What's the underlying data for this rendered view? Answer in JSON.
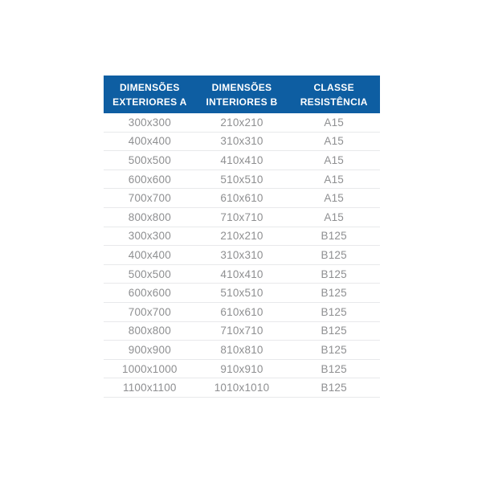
{
  "colors": {
    "header_bg": "#0e5ea2",
    "header_text": "#ffffff",
    "row_text": "#8e8f91",
    "divider": "#e8e9eb",
    "page_bg": "#ffffff"
  },
  "table": {
    "header": [
      {
        "line1": "DIMENSÕES",
        "line2": "EXTERIORES A"
      },
      {
        "line1": "DIMENSÕES",
        "line2": "INTERIORES B"
      },
      {
        "line1": "CLASSE",
        "line2": "RESISTÊNCIA"
      }
    ],
    "rows": [
      {
        "exterior": "300x300",
        "interior": "210x210",
        "classe": "A15"
      },
      {
        "exterior": "400x400",
        "interior": "310x310",
        "classe": "A15"
      },
      {
        "exterior": "500x500",
        "interior": "410x410",
        "classe": "A15"
      },
      {
        "exterior": "600x600",
        "interior": "510x510",
        "classe": "A15"
      },
      {
        "exterior": "700x700",
        "interior": "610x610",
        "classe": "A15"
      },
      {
        "exterior": "800x800",
        "interior": "710x710",
        "classe": "A15"
      },
      {
        "exterior": "300x300",
        "interior": "210x210",
        "classe": "B125"
      },
      {
        "exterior": "400x400",
        "interior": "310x310",
        "classe": "B125"
      },
      {
        "exterior": "500x500",
        "interior": "410x410",
        "classe": "B125"
      },
      {
        "exterior": "600x600",
        "interior": "510x510",
        "classe": "B125"
      },
      {
        "exterior": "700x700",
        "interior": "610x610",
        "classe": "B125"
      },
      {
        "exterior": "800x800",
        "interior": "710x710",
        "classe": "B125"
      },
      {
        "exterior": "900x900",
        "interior": "810x810",
        "classe": "B125"
      },
      {
        "exterior": "1000x1000",
        "interior": "910x910",
        "classe": "B125"
      },
      {
        "exterior": "1100x1100",
        "interior": "1010x1010",
        "classe": "B125"
      }
    ]
  }
}
